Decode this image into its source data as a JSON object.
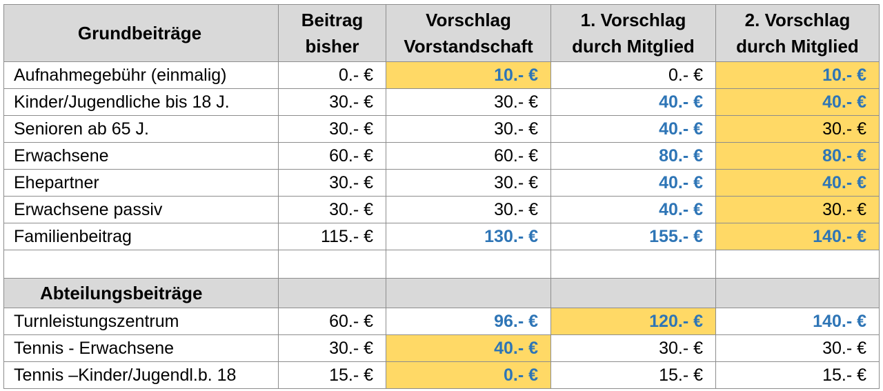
{
  "header": {
    "title": "Grundbeiträge",
    "col1": [
      "Beitrag",
      "bisher"
    ],
    "col2": [
      "Vorschlag",
      "Vorstandschaft"
    ],
    "col3": [
      "1. Vorschlag",
      "durch Mitglied"
    ],
    "col4": [
      "2. Vorschlag",
      "durch Mitglied"
    ]
  },
  "colors": {
    "highlight": "#ffd966",
    "emphasis_text": "#2e75b6",
    "header_bg": "#d9d9d9"
  },
  "grund": [
    {
      "label": "Aufnahmegebühr (einmalig)",
      "bisher": "0.- €",
      "vorstand": "10.- €",
      "v1": "0.- €",
      "v2": "10.- €"
    },
    {
      "label": "Kinder/Jugendliche bis 18 J.",
      "bisher": "30.- €",
      "vorstand": "30.- €",
      "v1": "40.- €",
      "v2": "40.- €"
    },
    {
      "label": "Senioren ab 65 J.",
      "bisher": "30.- €",
      "vorstand": "30.- €",
      "v1": "40.- €",
      "v2": "30.- €"
    },
    {
      "label": "Erwachsene",
      "bisher": "60.- €",
      "vorstand": "60.- €",
      "v1": "80.- €",
      "v2": "80.- €"
    },
    {
      "label": "Ehepartner",
      "bisher": "30.- €",
      "vorstand": "30.- €",
      "v1": "40.- €",
      "v2": "40.- €"
    },
    {
      "label": "Erwachsene passiv",
      "bisher": "30.- €",
      "vorstand": "30.- €",
      "v1": "40.- €",
      "v2": "30.- €"
    },
    {
      "label": "Familienbeitrag",
      "bisher": "115.- €",
      "vorstand": "130.- €",
      "v1": "155.- €",
      "v2": "140.- €"
    }
  ],
  "section_title": "Abteilungsbeiträge",
  "abteilung": [
    {
      "label": "Turnleistungszentrum",
      "bisher": "60.- €",
      "vorstand": "96.- €",
      "v1": "120.- €",
      "v2": "140.- €"
    },
    {
      "label": "Tennis - Erwachsene",
      "bisher": "30.- €",
      "vorstand": "40.- €",
      "v1": "30.- €",
      "v2": "30.- €"
    },
    {
      "label": "Tennis –Kinder/Jugendl.b. 18",
      "bisher": "15.- €",
      "vorstand": "0.- €",
      "v1": "15.- €",
      "v2": "15.- €"
    }
  ]
}
